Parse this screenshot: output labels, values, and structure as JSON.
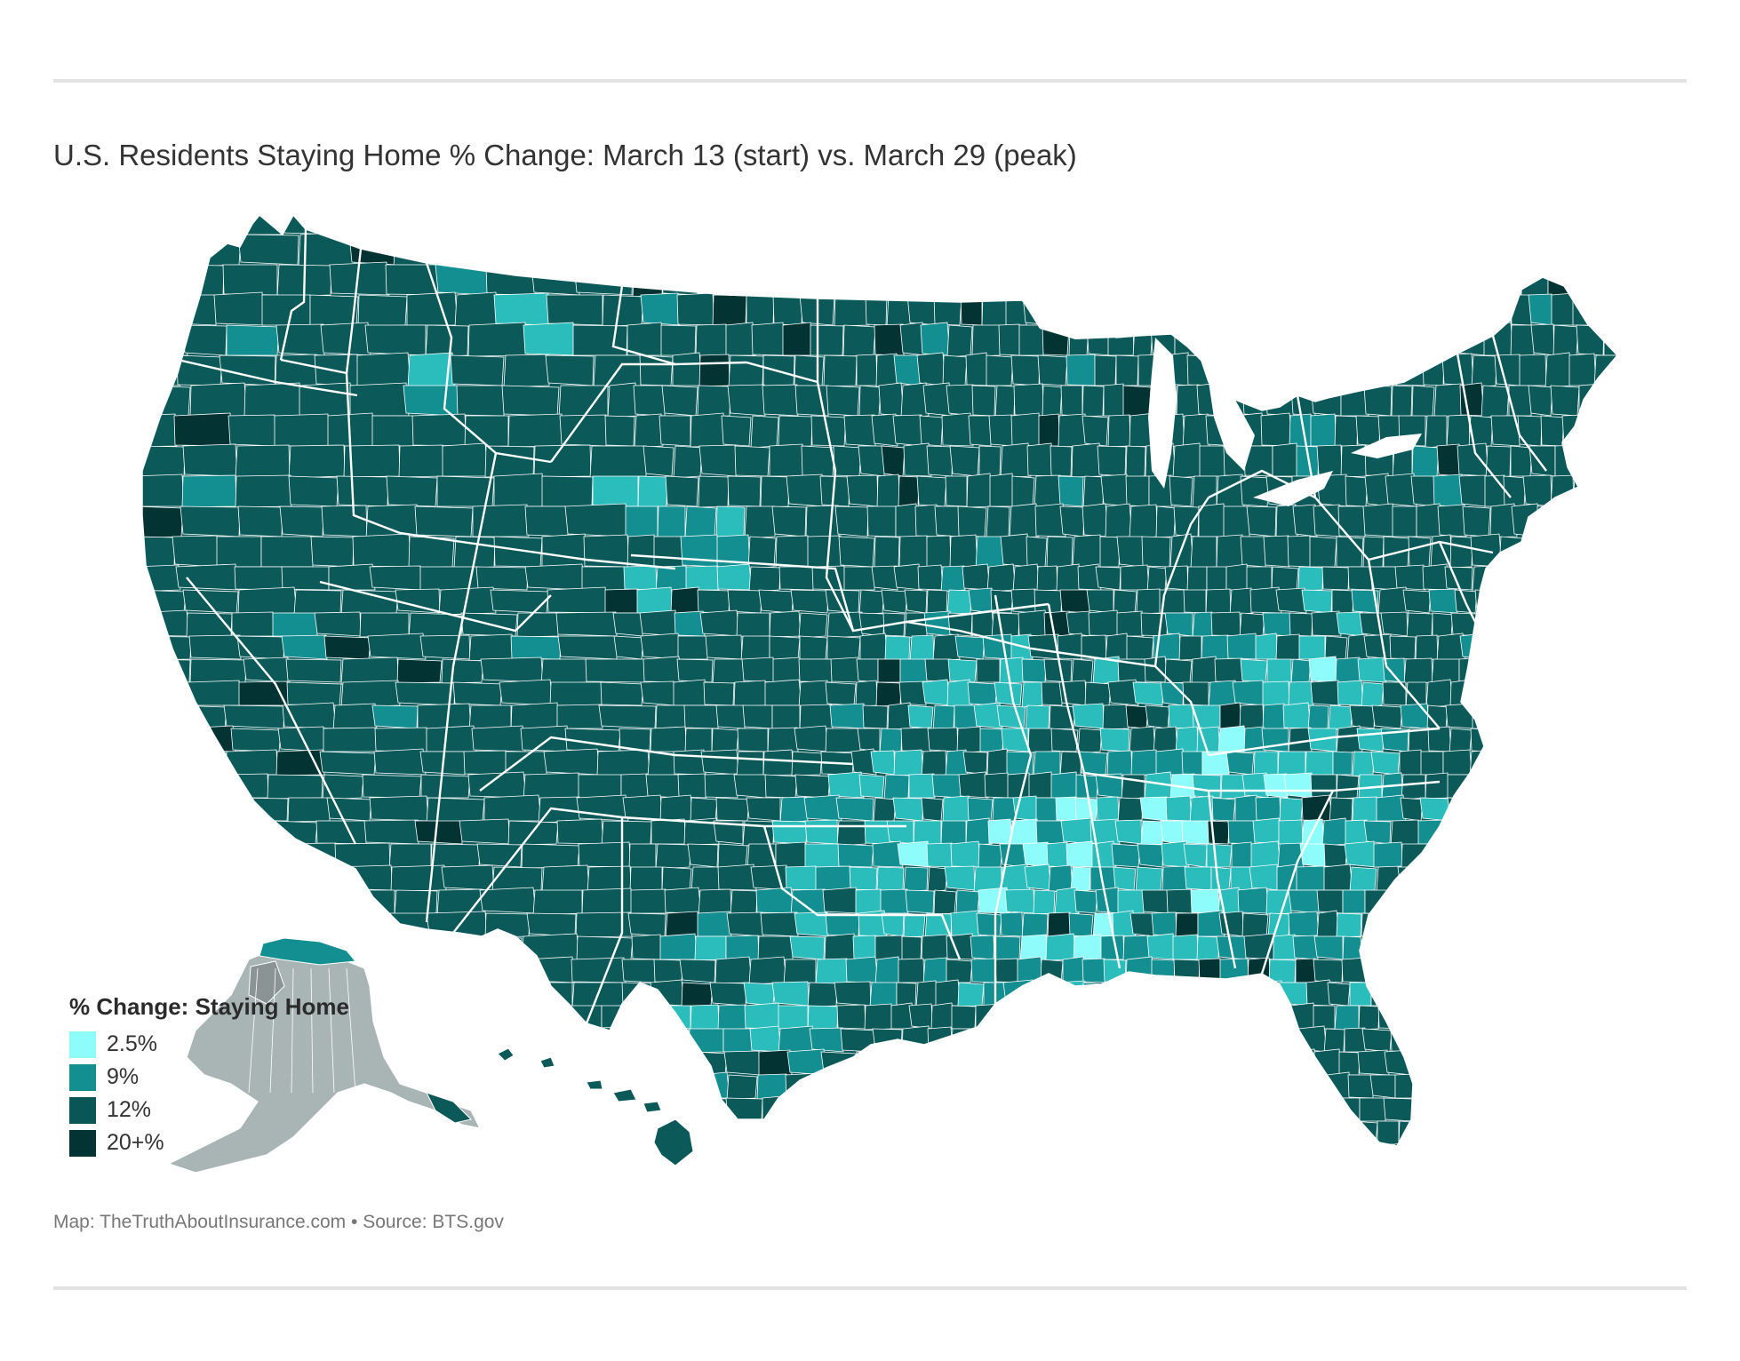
{
  "title": "U.S. Residents Staying Home % Change: March 13 (start) vs. March 29 (peak)",
  "legend": {
    "title": "% Change: Staying Home",
    "items": [
      {
        "label": "2.5%",
        "color": "#8ffcfc"
      },
      {
        "label": "9%",
        "color": "#138f91"
      },
      {
        "label": "12%",
        "color": "#0a5656"
      },
      {
        "label": "20+%",
        "color": "#033333"
      }
    ]
  },
  "colors": {
    "base": "#0b5959",
    "mid_light": "#2bbcbc",
    "light": "#8ffcfc",
    "medium": "#138f91",
    "dark": "#033333",
    "alaska_gray": "#a9b4b4",
    "no_data": "#e0e0e0",
    "county_border": "#ffffff"
  },
  "credit": "Map: TheTruthAboutInsurance.com • Source: BTS.gov"
}
